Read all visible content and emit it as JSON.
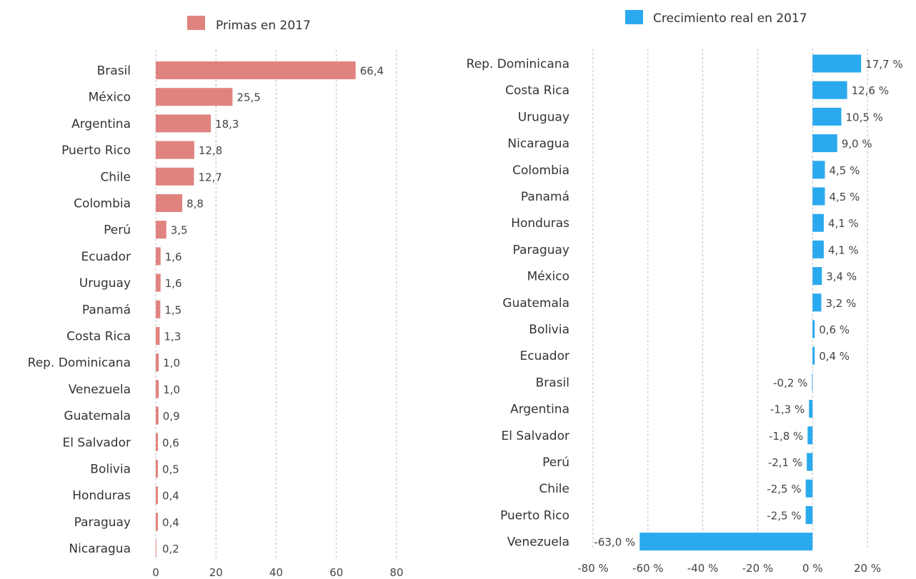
{
  "chart_data": [
    {
      "type": "bar",
      "orientation": "horizontal",
      "legend": "Primas en 2017",
      "legend_position": "top",
      "color": "#e0837f",
      "categories": [
        "Brasil",
        "México",
        "Argentina",
        "Puerto Rico",
        "Chile",
        "Colombia",
        "Perú",
        "Ecuador",
        "Uruguay",
        "Panamá",
        "Costa Rica",
        "Rep. Dominicana",
        "Venezuela",
        "Guatemala",
        "El Salvador",
        "Bolivia",
        "Honduras",
        "Paraguay",
        "Nicaragua"
      ],
      "values": [
        66.4,
        25.5,
        18.3,
        12.8,
        12.7,
        8.8,
        3.5,
        1.6,
        1.6,
        1.5,
        1.3,
        1.0,
        1.0,
        0.9,
        0.6,
        0.5,
        0.4,
        0.4,
        0.2
      ],
      "value_labels": [
        "66,4",
        "25,5",
        "18,3",
        "12,8",
        "12,7",
        "8,8",
        "3,5",
        "1,6",
        "1,6",
        "1,5",
        "1,3",
        "1,0",
        "1,0",
        "0,9",
        "0,6",
        "0,5",
        "0,4",
        "0,4",
        "0,2"
      ],
      "xlim": [
        0,
        80
      ],
      "ticks": [
        0,
        20,
        40,
        60,
        80
      ],
      "tick_labels": [
        "0",
        "20",
        "40",
        "60",
        "80"
      ],
      "grid": "vertical dashed"
    },
    {
      "type": "bar",
      "orientation": "horizontal",
      "legend": "Crecimiento real en 2017",
      "legend_position": "top",
      "color": "#2aa9ef",
      "categories": [
        "Rep. Dominicana",
        "Costa Rica",
        "Uruguay",
        "Nicaragua",
        "Colombia",
        "Panamá",
        "Honduras",
        "Paraguay",
        "México",
        "Guatemala",
        "Bolivia",
        "Ecuador",
        "Brasil",
        "Argentina",
        "El Salvador",
        "Perú",
        "Chile",
        "Puerto Rico",
        "Venezuela"
      ],
      "values": [
        17.7,
        12.6,
        10.5,
        9.0,
        4.5,
        4.5,
        4.1,
        4.1,
        3.4,
        3.2,
        0.6,
        0.4,
        -0.2,
        -1.3,
        -1.8,
        -2.1,
        -2.5,
        -2.5,
        -63.0
      ],
      "value_labels": [
        "17,7 %",
        "12,6 %",
        "10,5 %",
        "9,0 %",
        "4,5 %",
        "4,5 %",
        "4,1 %",
        "4,1 %",
        "3,4 %",
        "3,2 %",
        "0,6 %",
        "0,4 %",
        "-0,2 %",
        "-1,3 %",
        "-1,8 %",
        "-2,1 %",
        "-2,5 %",
        "-2,5 %",
        "-63,0 %"
      ],
      "xlim": [
        -80,
        20
      ],
      "ticks": [
        -80,
        -60,
        -40,
        -20,
        0,
        20
      ],
      "tick_labels": [
        "-80 %",
        "-60 %",
        "-40 %",
        "-20 %",
        "0 %",
        "20 %"
      ],
      "grid": "vertical dashed"
    }
  ]
}
